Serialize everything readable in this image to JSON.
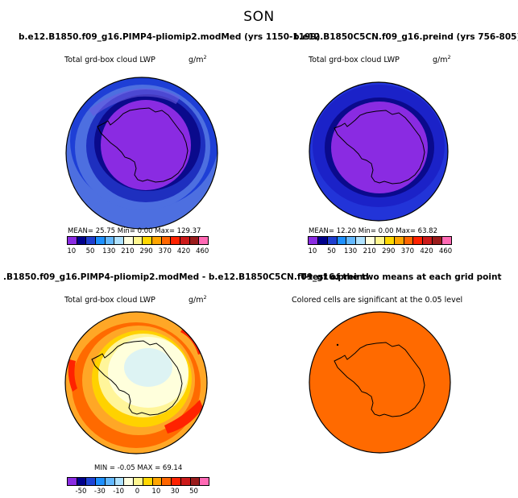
{
  "figure": {
    "title": "SON"
  },
  "panels": [
    {
      "title": "b.e12.B1850.f09_g16.PIMP4-pliomip2.modMed (yrs 1150-1199)",
      "subtitle": "Total grd-box cloud LWP",
      "units_base": "g/m",
      "units_exp": "2",
      "stats": "MEAN=   25.75  Min=     0.00  Max=  129.37",
      "colorbar_labels": [
        "10",
        "50",
        "130",
        "210",
        "290",
        "370",
        "420",
        "460"
      ]
    },
    {
      "title": "b.e12.B1850C5CN.f09_g16.preind (yrs 756-805)",
      "subtitle": "Total grd-box cloud LWP",
      "units_base": "g/m",
      "units_exp": "2",
      "stats": "MEAN=   12.20  Min=     0.00  Max=   63.82",
      "colorbar_labels": [
        "10",
        "50",
        "130",
        "210",
        "290",
        "370",
        "420",
        "460"
      ]
    },
    {
      "title": ".B1850.f09_g16.PIMP4-pliomip2.modMed - b.e12.B1850C5CN.f09_g16.preind",
      "subtitle": "Total grd-box cloud LWP",
      "units_base": "g/m",
      "units_exp": "2",
      "stats": "MIN =  -0.05 MAX =   69.14",
      "colorbar_labels": [
        "-50",
        "-30",
        "-10",
        "0",
        "10",
        "30",
        "50"
      ]
    },
    {
      "title": "T-test of the two means at each grid point",
      "subtitle": "Colored cells are significant at the 0.05 level"
    }
  ],
  "colors": {
    "abs_colorbar": [
      "#8a2be2",
      "#00008b",
      "#1f3fd0",
      "#1e90ff",
      "#63b8ff",
      "#b0e2ff",
      "#ffffe0",
      "#fff68f",
      "#ffd700",
      "#ffa500",
      "#ff6600",
      "#ff2200",
      "#cc1a1a",
      "#9a1c1c",
      "#ff69b4"
    ],
    "diff_colorbar": [
      "#8a2be2",
      "#00008b",
      "#1e44d6",
      "#1e90ff",
      "#63b8ff",
      "#b0e2ff",
      "#ffffe0",
      "#fff68f",
      "#ffd700",
      "#ffa500",
      "#ff6600",
      "#ff2200",
      "#cc1a1a",
      "#9a1c1c",
      "#ff69b4"
    ],
    "ttest_fill": "#ff6a00"
  }
}
